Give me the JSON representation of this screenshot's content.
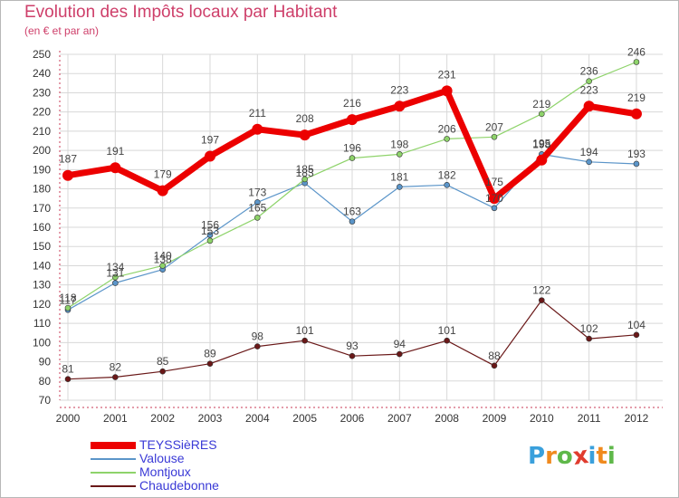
{
  "title": "Evolution des Impôts locaux par Habitant",
  "subtitle": "(en € et par an)",
  "colors": {
    "title": "#ce3f6a",
    "grid": "#d8d8d8",
    "axis": "#c93a55",
    "legend_text": "#3a3ad6"
  },
  "chart_data": {
    "type": "line",
    "title": "Evolution des Impôts locaux par Habitant",
    "subtitle": "(en € et par an)",
    "xlabel": "",
    "ylabel": "",
    "x": [
      "2000",
      "2001",
      "2002",
      "2003",
      "2004",
      "2005",
      "2006",
      "2007",
      "2008",
      "2009",
      "2010",
      "2011",
      "2012"
    ],
    "ylim": [
      70,
      250
    ],
    "yticks": [
      70,
      80,
      90,
      100,
      110,
      120,
      130,
      140,
      150,
      160,
      170,
      180,
      190,
      200,
      210,
      220,
      230,
      240,
      250
    ],
    "grid": true,
    "legend_position": "bottom-left",
    "series": [
      {
        "name": "TEYSSièRES",
        "color": "#ec0000",
        "line_width": 7,
        "marker_radius": 6,
        "values": [
          187,
          191,
          179,
          197,
          211,
          208,
          216,
          223,
          231,
          175,
          195,
          223,
          219
        ]
      },
      {
        "name": "Valouse",
        "color": "#5b95c9",
        "line_width": 1.2,
        "marker_radius": 3,
        "values": [
          117,
          131,
          138,
          156,
          173,
          183,
          163,
          181,
          182,
          170,
          198,
          194,
          193
        ]
      },
      {
        "name": "Montjoux",
        "color": "#8ed36a",
        "line_width": 1.2,
        "marker_radius": 3,
        "values": [
          118,
          134,
          140,
          153,
          165,
          185,
          196,
          198,
          206,
          207,
          219,
          236,
          246
        ]
      },
      {
        "name": "Chaudebonne",
        "color": "#6a1818",
        "line_width": 1.2,
        "marker_radius": 3,
        "values": [
          81,
          82,
          85,
          89,
          98,
          101,
          93,
          94,
          101,
          88,
          122,
          102,
          104
        ]
      }
    ]
  },
  "logo": {
    "letters": [
      "P",
      "r",
      "o",
      "x",
      "i",
      "t",
      "i"
    ],
    "colors": [
      "#3aa0dc",
      "#f08a1e",
      "#5fb84a",
      "#e03c2e",
      "#3aa0dc",
      "#f08a1e",
      "#5fb84a"
    ]
  }
}
